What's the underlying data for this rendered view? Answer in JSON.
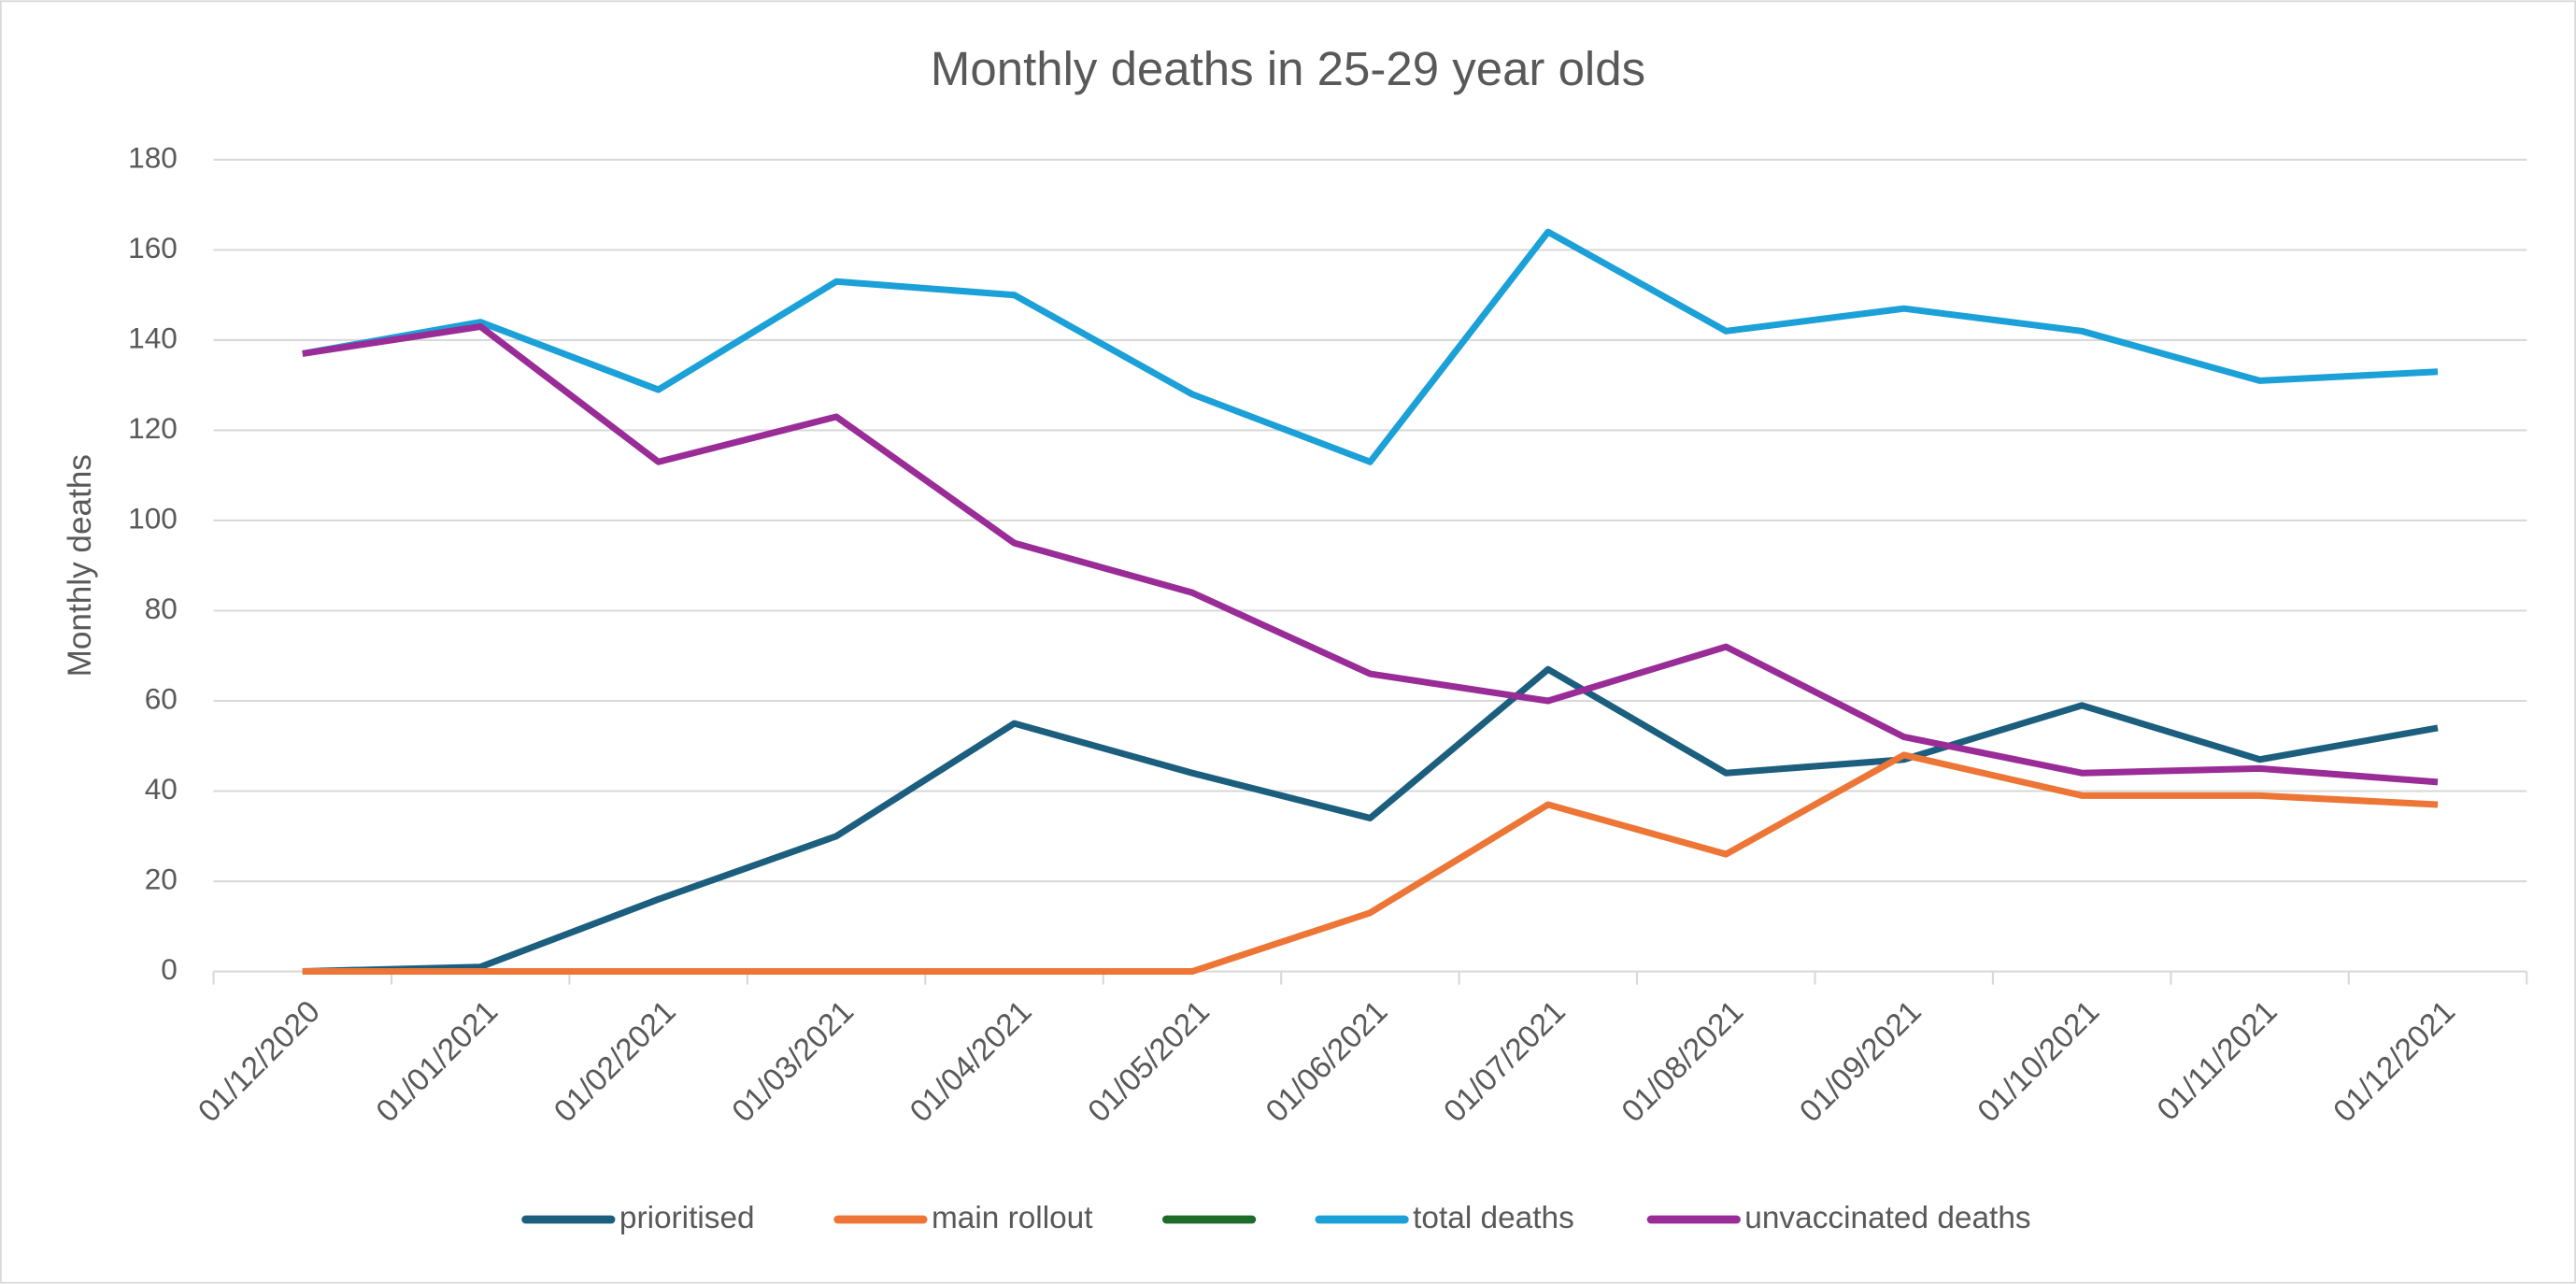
{
  "chart_data": {
    "type": "line",
    "title": "Monthly deaths in 25-29 year olds",
    "y_label": "Monthly deaths",
    "categories": [
      "01/12/2020",
      "01/01/2021",
      "01/02/2021",
      "01/03/2021",
      "01/04/2021",
      "01/05/2021",
      "01/06/2021",
      "01/07/2021",
      "01/08/2021",
      "01/09/2021",
      "01/10/2021",
      "01/11/2021",
      "01/12/2021"
    ],
    "series": [
      {
        "name": "prioritised",
        "color": "#1b5e7e",
        "values": [
          0,
          1,
          16,
          30,
          55,
          44,
          34,
          67,
          44,
          47,
          59,
          47,
          54
        ]
      },
      {
        "name": "main rollout",
        "color": "#ed7536",
        "values": [
          0,
          0,
          0,
          0,
          0,
          0,
          13,
          37,
          26,
          48,
          39,
          39,
          37
        ]
      },
      {
        "color": "#1e6b2a",
        "values": [
          null,
          null,
          null,
          null,
          null,
          null,
          null,
          null,
          null,
          null,
          null,
          null,
          null
        ]
      },
      {
        "name": "total deaths",
        "color": "#1ba0d8",
        "values": [
          137,
          144,
          129,
          153,
          150,
          128,
          113,
          164,
          142,
          147,
          142,
          131,
          133
        ]
      },
      {
        "name": "unvaccinated deaths",
        "color": "#9a2c97",
        "values": [
          137,
          143,
          113,
          123,
          95,
          84,
          66,
          60,
          72,
          52,
          44,
          45,
          42
        ]
      }
    ],
    "ylim": [
      0,
      180
    ],
    "yticks": [
      0,
      20,
      40,
      60,
      80,
      100,
      120,
      140,
      160,
      180
    ],
    "grid": true,
    "legend": "bottom"
  }
}
